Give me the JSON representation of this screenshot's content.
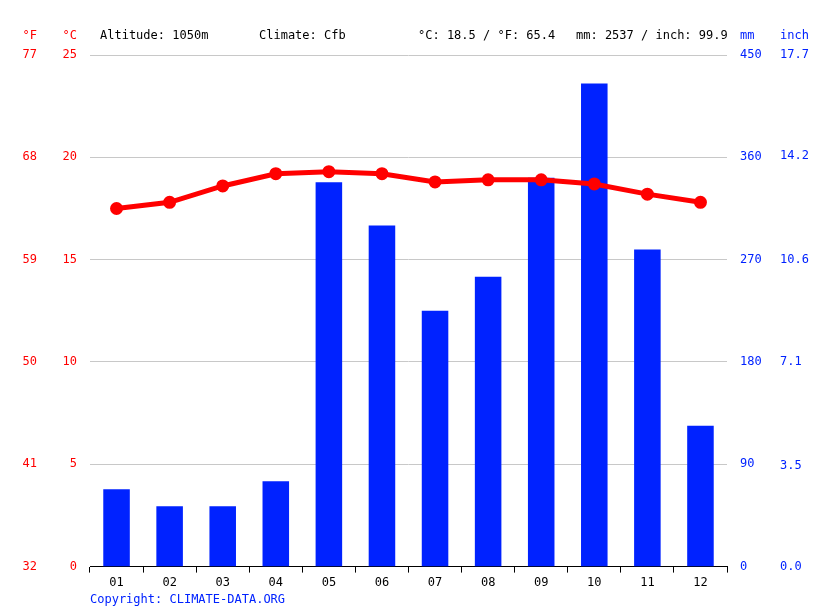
{
  "chart_data": {
    "type": "bar",
    "categories": [
      "01",
      "02",
      "03",
      "04",
      "05",
      "06",
      "07",
      "08",
      "09",
      "10",
      "11",
      "12"
    ],
    "series": [
      {
        "name": "°C",
        "type": "line",
        "color": "#ff0000",
        "marker": "circle",
        "line_style": "solid",
        "values": [
          17.5,
          17.8,
          18.6,
          19.2,
          19.3,
          19.2,
          18.8,
          18.9,
          18.9,
          18.7,
          18.2,
          17.8
        ]
      },
      {
        "name": "mm",
        "type": "bar",
        "color": "#0022ff",
        "axis": "y2",
        "values": [
          68,
          53,
          53,
          75,
          338,
          300,
          225,
          255,
          342,
          425,
          279,
          124
        ]
      }
    ],
    "ylim": [
      0,
      25
    ],
    "yticks": [
      0,
      5,
      10,
      15,
      20,
      25
    ],
    "y2lim": [
      0,
      450
    ],
    "y2ticks": [
      0,
      90,
      180,
      270,
      360,
      450
    ],
    "y3label": "°F",
    "y3lim": [
      32,
      77
    ],
    "y3ticks": [
      32,
      41,
      50,
      59,
      68,
      77
    ],
    "y4label": "inch",
    "y4lim": [
      0,
      17.7
    ],
    "y4ticks": [
      {
        "value": 0,
        "label": "0.0"
      },
      3.5,
      7.1,
      10.6,
      14.2,
      17.7
    ],
    "grid": true,
    "annotations": [
      "Altitude: 1050m",
      "Climate: Cfb",
      "°C: 18.5 / °F: 65.4",
      "mm: 2537 / inch: 99.9"
    ],
    "source": "Copyright: CLIMATE-DATA.ORG"
  }
}
